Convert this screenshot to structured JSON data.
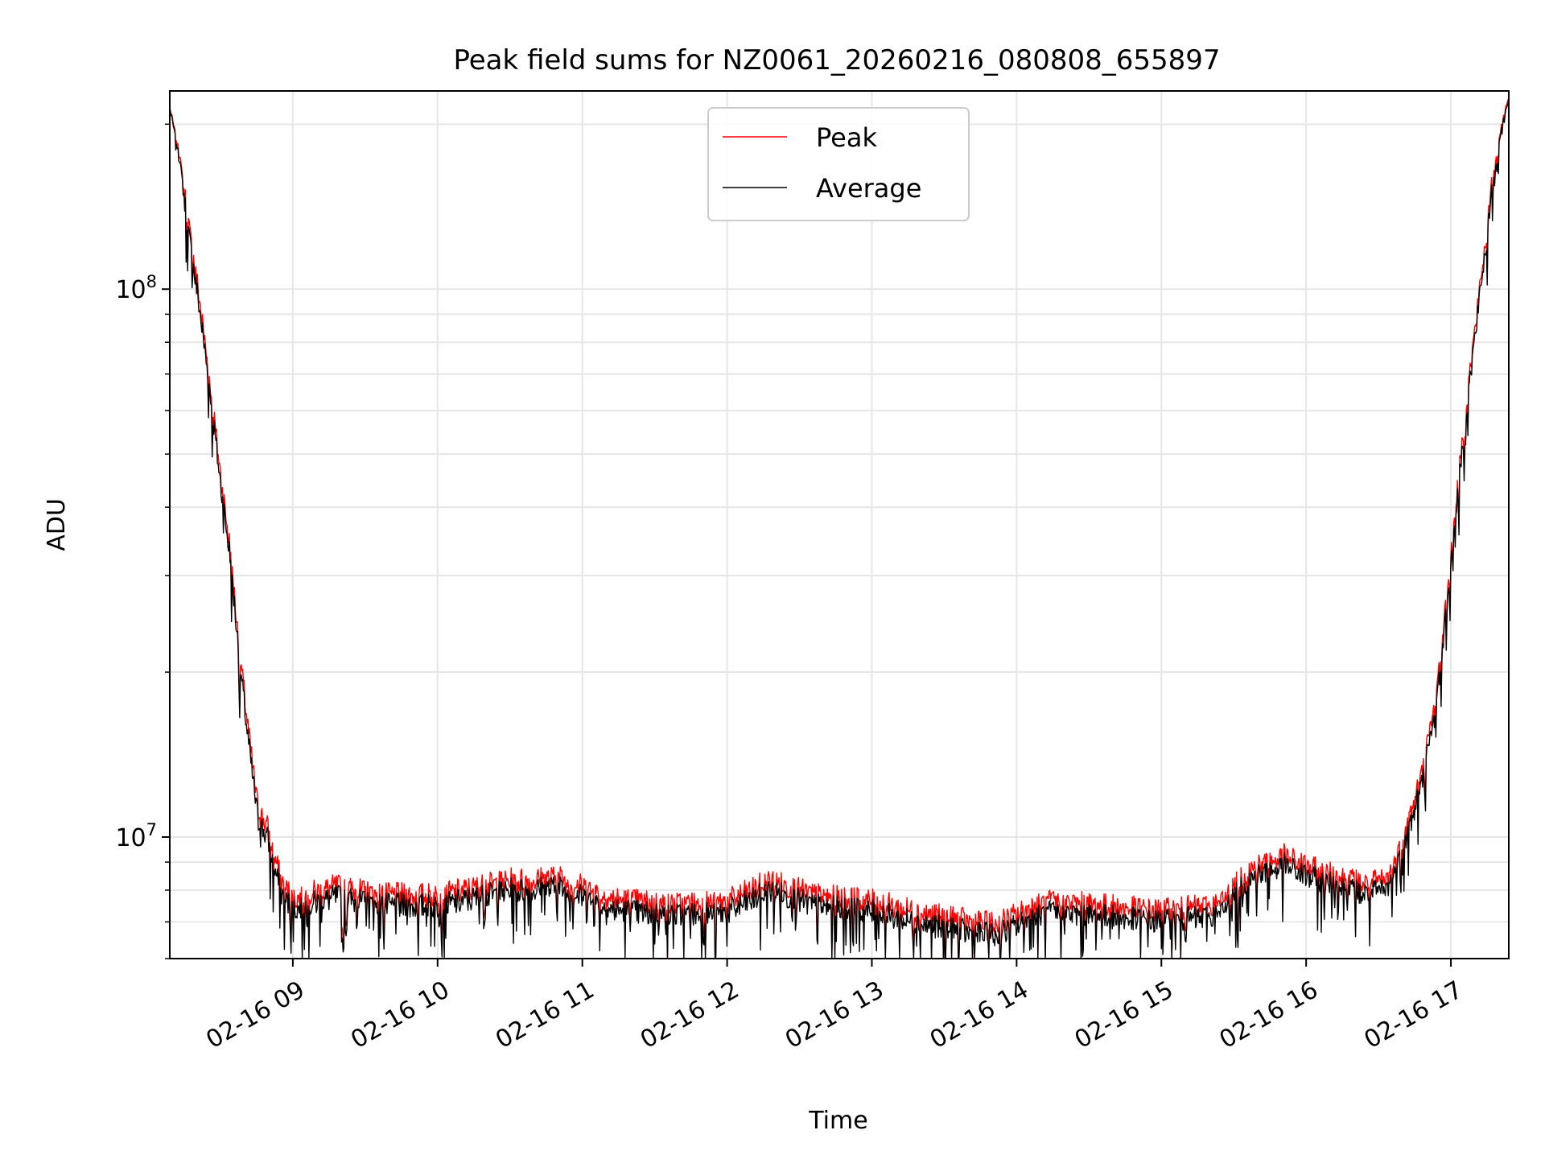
{
  "chart_data": {
    "type": "line",
    "title": "Peak field sums for NZ0061_20260216_080808_655897",
    "xlabel": "Time",
    "ylabel": "ADU",
    "yscale": "log",
    "xlim_hours": [
      8.15,
      17.4
    ],
    "ylim": [
      6000000,
      230000000
    ],
    "grid": true,
    "legend_position": "upper center",
    "x_ticks": [
      {
        "hour": 9,
        "label": "02-16 09"
      },
      {
        "hour": 10,
        "label": "02-16 10"
      },
      {
        "hour": 11,
        "label": "02-16 11"
      },
      {
        "hour": 12,
        "label": "02-16 12"
      },
      {
        "hour": 13,
        "label": "02-16 13"
      },
      {
        "hour": 14,
        "label": "02-16 14"
      },
      {
        "hour": 15,
        "label": "02-16 15"
      },
      {
        "hour": 16,
        "label": "02-16 16"
      },
      {
        "hour": 17,
        "label": "02-16 17"
      }
    ],
    "y_major_ticks": [
      {
        "value": 10000000,
        "base": "10",
        "exp": "7"
      },
      {
        "value": 100000000,
        "base": "10",
        "exp": "8"
      }
    ],
    "y_minor_ticks": [
      6000000,
      7000000,
      8000000,
      9000000,
      20000000,
      30000000,
      40000000,
      50000000,
      60000000,
      70000000,
      80000000,
      90000000,
      200000000
    ],
    "series": [
      {
        "name": "Peak",
        "color": "#ff0000",
        "points": [
          [
            8.15,
            215000000
          ],
          [
            8.22,
            175000000
          ],
          [
            8.28,
            130000000
          ],
          [
            8.35,
            98000000
          ],
          [
            8.42,
            70000000
          ],
          [
            8.5,
            46000000
          ],
          [
            8.57,
            33000000
          ],
          [
            8.63,
            22000000
          ],
          [
            8.7,
            15000000
          ],
          [
            8.76,
            11200000
          ],
          [
            8.82,
            10500000
          ],
          [
            8.87,
            9300000
          ],
          [
            8.92,
            8300000
          ],
          [
            9.0,
            7700000
          ],
          [
            9.3,
            8100000
          ],
          [
            9.6,
            7800000
          ],
          [
            10.0,
            7800000
          ],
          [
            10.5,
            8300000
          ],
          [
            10.85,
            8400000
          ],
          [
            11.2,
            7700000
          ],
          [
            11.6,
            7500000
          ],
          [
            12.0,
            7600000
          ],
          [
            12.3,
            8300000
          ],
          [
            12.6,
            7800000
          ],
          [
            13.0,
            7600000
          ],
          [
            13.5,
            7100000
          ],
          [
            13.85,
            6900000
          ],
          [
            14.2,
            7600000
          ],
          [
            14.5,
            7500000
          ],
          [
            15.0,
            7300000
          ],
          [
            15.4,
            7500000
          ],
          [
            15.6,
            8700000
          ],
          [
            15.85,
            9200000
          ],
          [
            16.1,
            8600000
          ],
          [
            16.4,
            8200000
          ],
          [
            16.55,
            8300000
          ],
          [
            16.62,
            9000000
          ],
          [
            16.7,
            10500000
          ],
          [
            16.8,
            13000000
          ],
          [
            16.9,
            18000000
          ],
          [
            17.0,
            32000000
          ],
          [
            17.1,
            60000000
          ],
          [
            17.2,
            100000000
          ],
          [
            17.28,
            150000000
          ],
          [
            17.35,
            200000000
          ],
          [
            17.4,
            225000000
          ]
        ]
      },
      {
        "name": "Average",
        "color": "#000000",
        "points": [
          [
            8.15,
            215000000
          ],
          [
            8.22,
            172000000
          ],
          [
            8.28,
            128000000
          ],
          [
            8.35,
            96000000
          ],
          [
            8.42,
            69000000
          ],
          [
            8.5,
            45000000
          ],
          [
            8.57,
            32500000
          ],
          [
            8.63,
            21500000
          ],
          [
            8.7,
            14600000
          ],
          [
            8.76,
            10900000
          ],
          [
            8.82,
            10200000
          ],
          [
            8.87,
            9000000
          ],
          [
            8.92,
            8000000
          ],
          [
            9.0,
            7500000
          ],
          [
            9.3,
            7900000
          ],
          [
            9.6,
            7600000
          ],
          [
            10.0,
            7600000
          ],
          [
            10.5,
            8100000
          ],
          [
            10.85,
            8200000
          ],
          [
            11.2,
            7500000
          ],
          [
            11.6,
            7300000
          ],
          [
            12.0,
            7400000
          ],
          [
            12.3,
            8100000
          ],
          [
            12.6,
            7600000
          ],
          [
            13.0,
            7400000
          ],
          [
            13.5,
            6900000
          ],
          [
            13.85,
            6700000
          ],
          [
            14.2,
            7400000
          ],
          [
            14.5,
            7300000
          ],
          [
            15.0,
            7100000
          ],
          [
            15.4,
            7300000
          ],
          [
            15.6,
            8500000
          ],
          [
            15.85,
            9000000
          ],
          [
            16.1,
            8400000
          ],
          [
            16.4,
            8000000
          ],
          [
            16.55,
            8100000
          ],
          [
            16.62,
            8800000
          ],
          [
            16.7,
            10300000
          ],
          [
            16.8,
            12700000
          ],
          [
            16.9,
            17600000
          ],
          [
            17.0,
            31500000
          ],
          [
            17.1,
            59000000
          ],
          [
            17.2,
            99000000
          ],
          [
            17.28,
            148000000
          ],
          [
            17.35,
            198000000
          ],
          [
            17.4,
            223000000
          ]
        ]
      }
    ]
  }
}
